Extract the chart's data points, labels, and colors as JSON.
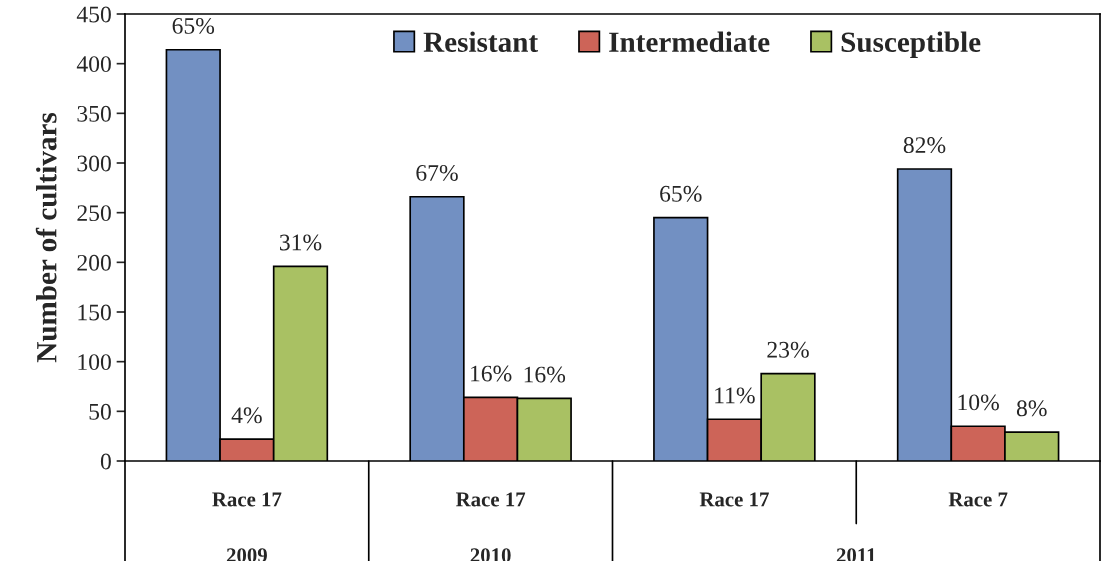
{
  "chart_data": {
    "type": "bar",
    "ylabel": "Number of cultivars",
    "categories": [
      "Race 17",
      "Race 17",
      "Race 17",
      "Race 7"
    ],
    "series": [
      {
        "name": "Resistant",
        "color": "#7290c2",
        "values": [
          414,
          266,
          245,
          294
        ]
      },
      {
        "name": "Intermediate",
        "color": "#cd6458",
        "values": [
          22,
          64,
          42,
          35
        ]
      },
      {
        "name": "Susceptible",
        "color": "#a9c163",
        "values": [
          196,
          63,
          88,
          29
        ]
      }
    ],
    "ylim": [
      0,
      450
    ],
    "yticks": [
      0,
      50,
      100,
      150,
      200,
      250,
      300,
      350,
      400,
      450
    ],
    "annotations": [
      "2009",
      "2010",
      "2011",
      "65%",
      "67%",
      "65%",
      "82%",
      "4%",
      "16%",
      "11%",
      "10%",
      "31%",
      "16%",
      "23%",
      "8%"
    ],
    "legend": "top right",
    "grid": false
  }
}
